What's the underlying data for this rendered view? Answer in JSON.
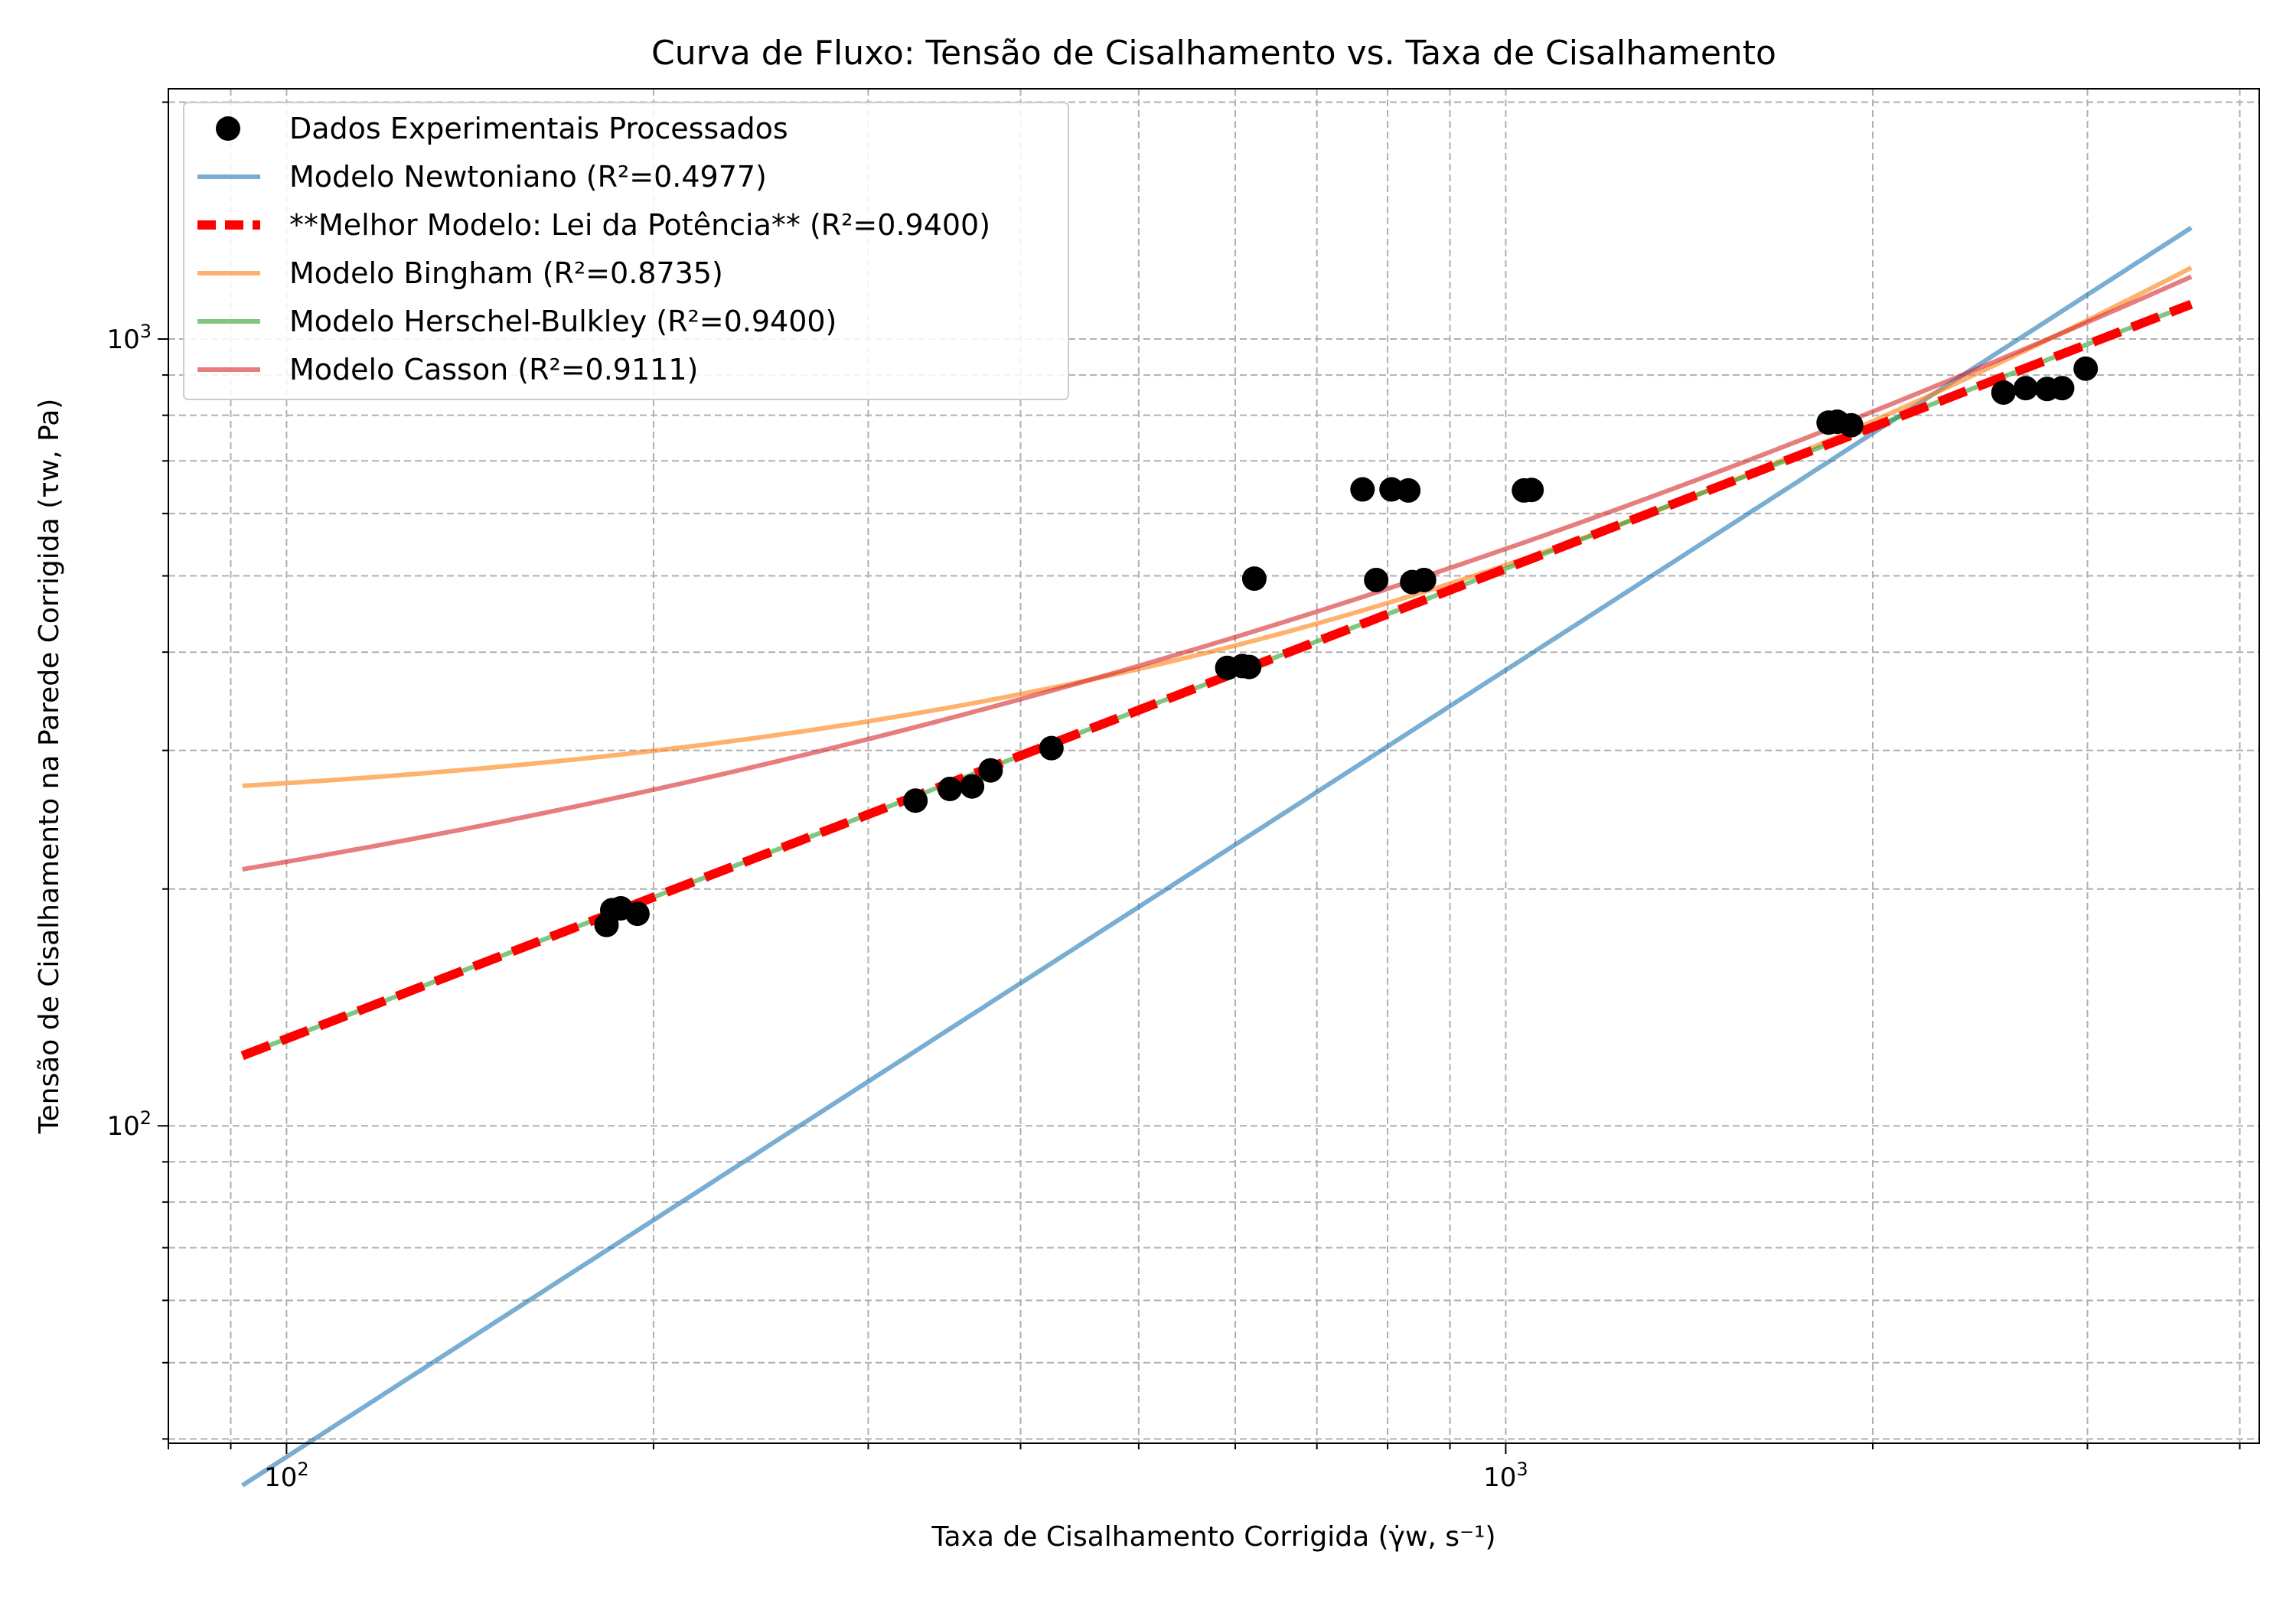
{
  "chart_data": {
    "type": "scatter",
    "title": "Curva de Fluxo: Tensão de Cisalhamento vs. Taxa de Cisalhamento",
    "xlabel": "Taxa de Cisalhamento Corrigida (γ̇w, s⁻¹)",
    "ylabel": "Tensão de Cisalhamento na Parede Corrigida (τw, Pa)",
    "xscale": "log",
    "yscale": "log",
    "xlim": [
      80,
      4150
    ],
    "ylim": [
      39.5,
      2080
    ],
    "grid": true,
    "legend_position": "top-left",
    "x_tick_labels": [
      {
        "value": 100,
        "base": "10",
        "exp": "2"
      },
      {
        "value": 1000,
        "base": "10",
        "exp": "3"
      }
    ],
    "y_tick_labels": [
      {
        "value": 100,
        "base": "10",
        "exp": "2"
      },
      {
        "value": 1000,
        "base": "10",
        "exp": "3"
      }
    ],
    "scatter": {
      "name": "Dados Experimentais Processados",
      "color": "#000000",
      "points": [
        {
          "x": 183,
          "y": 180
        },
        {
          "x": 185,
          "y": 188
        },
        {
          "x": 188,
          "y": 189
        },
        {
          "x": 194,
          "y": 186
        },
        {
          "x": 328,
          "y": 259
        },
        {
          "x": 350,
          "y": 268
        },
        {
          "x": 365,
          "y": 270
        },
        {
          "x": 378,
          "y": 283
        },
        {
          "x": 424,
          "y": 302
        },
        {
          "x": 591,
          "y": 382
        },
        {
          "x": 608,
          "y": 384
        },
        {
          "x": 616,
          "y": 383
        },
        {
          "x": 622,
          "y": 496
        },
        {
          "x": 763,
          "y": 644
        },
        {
          "x": 783,
          "y": 494
        },
        {
          "x": 806,
          "y": 644
        },
        {
          "x": 832,
          "y": 642
        },
        {
          "x": 838,
          "y": 491
        },
        {
          "x": 857,
          "y": 494
        },
        {
          "x": 1035,
          "y": 642
        },
        {
          "x": 1050,
          "y": 643
        },
        {
          "x": 1840,
          "y": 783
        },
        {
          "x": 1870,
          "y": 785
        },
        {
          "x": 1920,
          "y": 777
        },
        {
          "x": 2560,
          "y": 855
        },
        {
          "x": 2670,
          "y": 866
        },
        {
          "x": 2780,
          "y": 864
        },
        {
          "x": 2860,
          "y": 866
        },
        {
          "x": 2990,
          "y": 917
        }
      ]
    },
    "series": [
      {
        "name": "Modelo Newtoniano (R²=0.4977)",
        "model": "newtonian",
        "color": "#1f77b4",
        "alpha": 0.6,
        "dashed": false,
        "params": {
          "mu": 0.3795
        }
      },
      {
        "name": "**Melhor Modelo: Lei da Potência** (R²=0.9400)",
        "model": "power",
        "color": "#ff0000",
        "alpha": 1.0,
        "dashed": true,
        "params": {
          "K": 8.236,
          "n": 0.5975
        }
      },
      {
        "name": "Modelo Bingham (R²=0.8735)",
        "model": "bingham",
        "color": "#ff7f0e",
        "alpha": 0.6,
        "dashed": false,
        "params": {
          "tau0": 245.6,
          "mu": 0.2703
        }
      },
      {
        "name": "Modelo Herschel-Bulkley (R²=0.9400)",
        "model": "power",
        "color": "#2ca02c",
        "alpha": 0.6,
        "dashed": false,
        "params": {
          "K": 8.236,
          "n": 0.5975
        }
      },
      {
        "name": "Modelo Casson (R²=0.9111)",
        "model": "casson",
        "color": "#d62728",
        "alpha": 0.6,
        "dashed": false,
        "params": {
          "a": 10.765,
          "b": 0.3952
        }
      }
    ],
    "model_x_range": [
      92,
      3650
    ]
  }
}
